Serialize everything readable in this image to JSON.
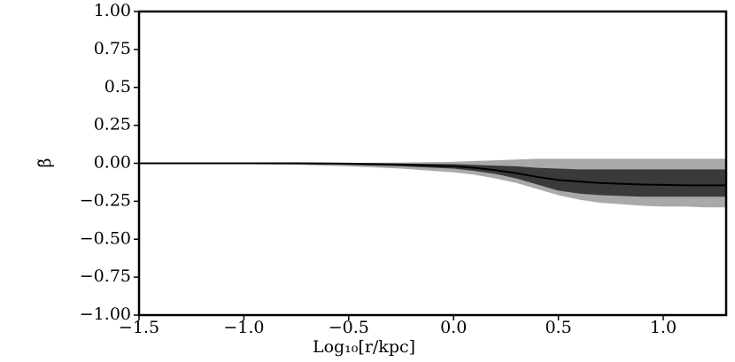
{
  "chart_data": {
    "type": "line",
    "x_label": "Log₁₀[r/kpc]",
    "y_label": "β̃",
    "x": [
      -1.5,
      -1.25,
      -1.0,
      -0.75,
      -0.5,
      -0.25,
      0.0,
      0.1,
      0.2,
      0.3,
      0.4,
      0.5,
      0.6,
      0.7,
      0.8,
      0.9,
      1.0,
      1.1,
      1.2,
      1.3
    ],
    "series": [
      {
        "color": "#000000",
        "values": [
          0,
          0,
          0,
          0,
          -0.002,
          -0.008,
          -0.02,
          -0.03,
          -0.045,
          -0.065,
          -0.09,
          -0.11,
          -0.12,
          -0.13,
          -0.135,
          -0.14,
          -0.142,
          -0.145,
          -0.145,
          -0.145
        ]
      }
    ],
    "bands": [
      {
        "color": "#a9a9a9",
        "lower": [
          0,
          -0.002,
          -0.005,
          -0.01,
          -0.02,
          -0.035,
          -0.06,
          -0.075,
          -0.1,
          -0.13,
          -0.17,
          -0.21,
          -0.24,
          -0.26,
          -0.27,
          -0.28,
          -0.285,
          -0.285,
          -0.29,
          -0.29
        ],
        "upper": [
          0,
          0,
          0,
          0,
          0.002,
          0.005,
          0.01,
          0.015,
          0.02,
          0.025,
          0.03,
          0.03,
          0.03,
          0.03,
          0.03,
          0.03,
          0.03,
          0.03,
          0.03,
          0.03
        ]
      },
      {
        "color": "#3a3a3a",
        "lower": [
          0,
          0,
          -0.002,
          -0.005,
          -0.01,
          -0.02,
          -0.035,
          -0.05,
          -0.07,
          -0.1,
          -0.14,
          -0.18,
          -0.2,
          -0.21,
          -0.215,
          -0.22,
          -0.22,
          -0.22,
          -0.22,
          -0.22
        ],
        "upper": [
          0,
          0,
          0,
          0,
          0,
          -0.002,
          -0.005,
          -0.01,
          -0.015,
          -0.02,
          -0.03,
          -0.035,
          -0.04,
          -0.04,
          -0.04,
          -0.04,
          -0.04,
          -0.04,
          -0.04,
          -0.04
        ]
      }
    ],
    "xlim": [
      -1.5,
      1.3
    ],
    "ylim": [
      -1,
      1
    ],
    "xticks": [
      {
        "value": -1.5,
        "label": "−1.5"
      },
      {
        "value": -1.0,
        "label": "−1.0"
      },
      {
        "value": -0.5,
        "label": "−0.5"
      },
      {
        "value": 0,
        "label": "0.0"
      },
      {
        "value": 0.5,
        "label": "0.5"
      },
      {
        "value": 1.0,
        "label": "1.0"
      }
    ],
    "yticks": [
      {
        "value": -1,
        "label": "−1.00"
      },
      {
        "value": -0.75,
        "label": "−0.75"
      },
      {
        "value": -0.5,
        "label": "−0.50"
      },
      {
        "value": -0.25,
        "label": "−0.25"
      },
      {
        "value": 0,
        "label": "0.00"
      },
      0.25,
      0.5,
      0.75,
      {
        "value": 1,
        "label": "1.00"
      }
    ],
    "grid": false
  }
}
